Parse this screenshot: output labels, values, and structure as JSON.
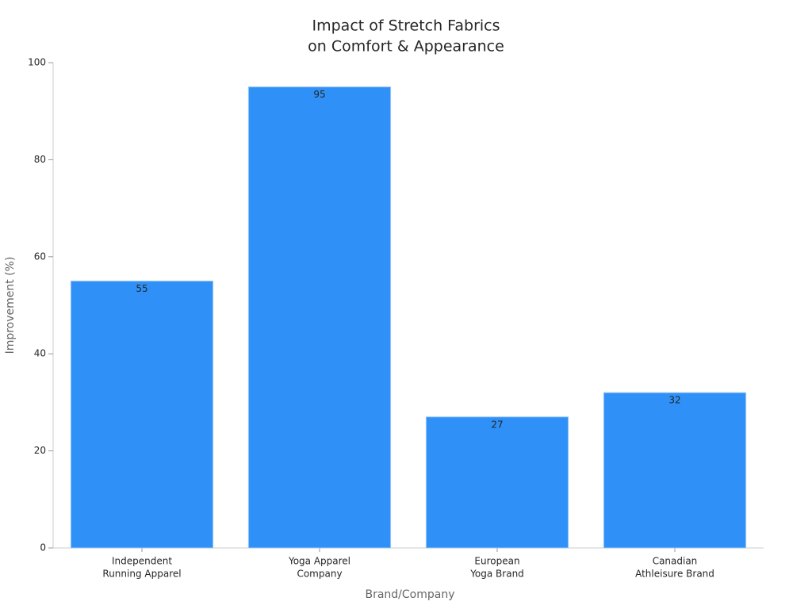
{
  "chart_data": {
    "type": "bar",
    "title": [
      "Impact of Stretch Fabrics",
      "on Comfort & Appearance"
    ],
    "x_label": "Brand/Company",
    "y_label": "Improvement (%)",
    "categories": [
      [
        "Independent",
        "Running Apparel"
      ],
      [
        "Yoga Apparel",
        "Company"
      ],
      [
        "European",
        "Yoga Brand"
      ],
      [
        "Canadian",
        "Athleisure Brand"
      ]
    ],
    "values": [
      55,
      95,
      27,
      32
    ],
    "color": "#2f91f7",
    "ylim": [
      0,
      100
    ],
    "yticks": [
      0,
      20,
      40,
      60,
      80,
      100
    ],
    "grid": false
  }
}
